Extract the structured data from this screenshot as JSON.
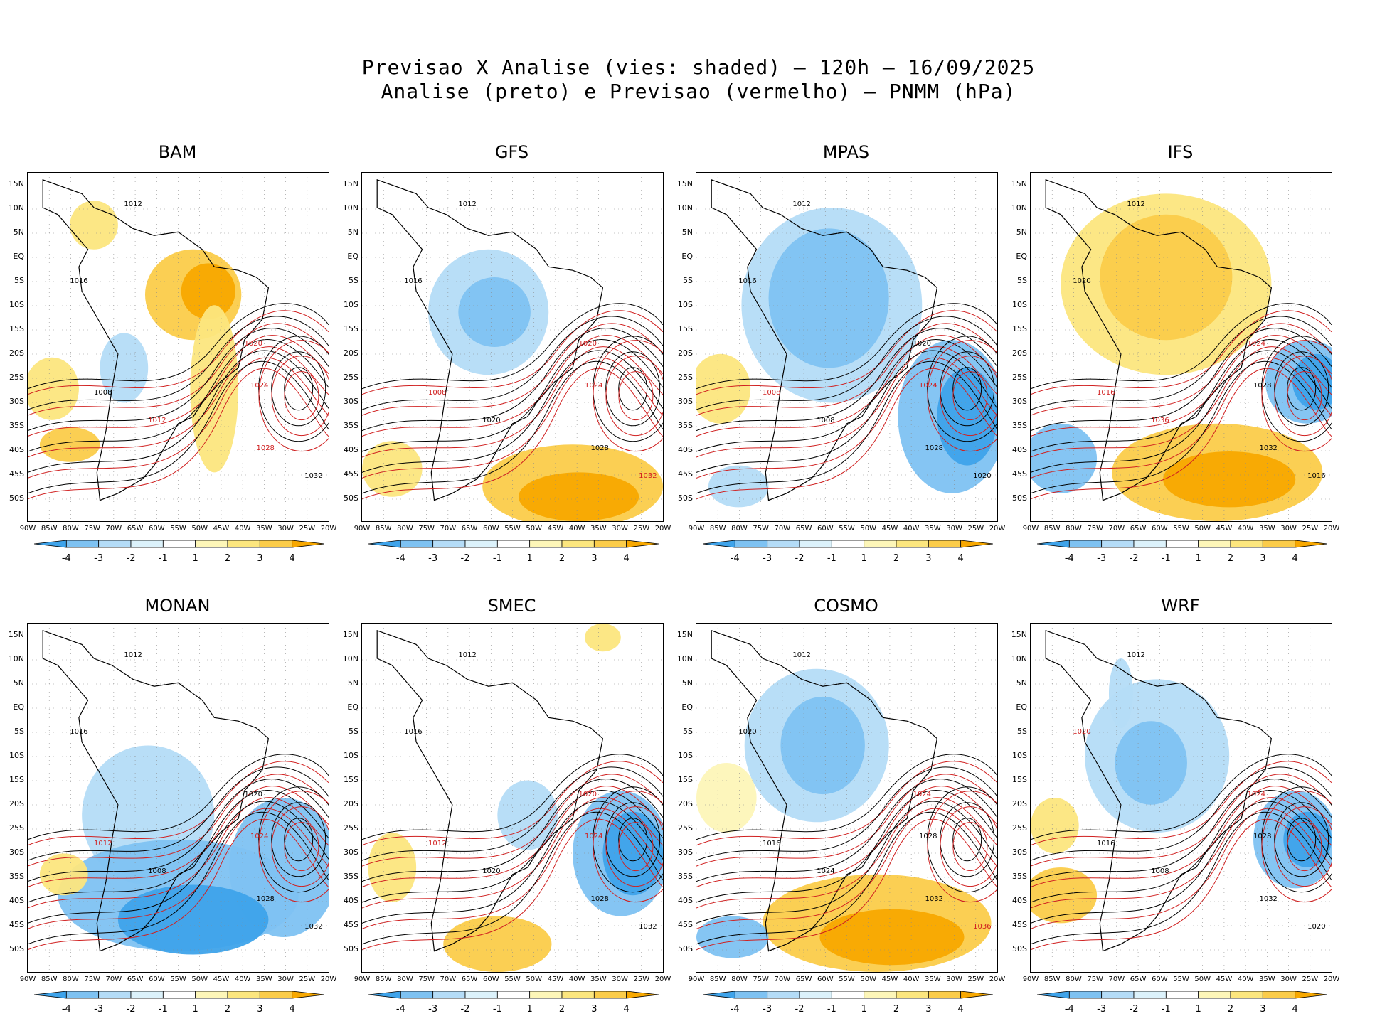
{
  "title_line1": "Previsao X Analise (vies: shaded) – 120h – 16/09/2025",
  "title_line2": "Analise (preto) e Previsao (vermelho) – PNMM (hPa)",
  "lat_labels": [
    "15N",
    "10N",
    "5N",
    "EQ",
    "5S",
    "10S",
    "15S",
    "20S",
    "25S",
    "30S",
    "35S",
    "40S",
    "45S",
    "50S"
  ],
  "lon_labels": [
    "90W",
    "85W",
    "80W",
    "75W",
    "70W",
    "65W",
    "60W",
    "55W",
    "50W",
    "45W",
    "40W",
    "35W",
    "30W",
    "25W",
    "20W"
  ],
  "colorbar_labels": [
    "-4",
    "-3",
    "-2",
    "-1",
    "1",
    "2",
    "3",
    "4"
  ],
  "colors": {
    "neg4": "#3ea3ea",
    "neg3": "#7ec2f2",
    "neg2": "#b4dcf7",
    "neg1": "#dcf2fb",
    "pos1": "#fdf6b8",
    "pos2": "#fce67e",
    "pos3": "#fbcc4a",
    "pos4": "#f8a800",
    "analysis": "#000000",
    "forecast": "#d02020",
    "grid": "#8a8a8a"
  },
  "panels": [
    {
      "name": "BAM",
      "bias": "warm-north",
      "labels": [
        [
          "1012",
          "black"
        ],
        [
          "1008",
          "black"
        ],
        [
          "1016",
          "black"
        ],
        [
          "1020",
          "red"
        ],
        [
          "1024",
          "red"
        ],
        [
          "1028",
          "red"
        ],
        [
          "1032",
          "black"
        ],
        [
          "1012",
          "red"
        ]
      ]
    },
    {
      "name": "GFS",
      "bias": "cold-north",
      "labels": [
        [
          "1012",
          "black"
        ],
        [
          "1008",
          "red"
        ],
        [
          "1016",
          "black"
        ],
        [
          "1020",
          "red"
        ],
        [
          "1024",
          "red"
        ],
        [
          "1028",
          "black"
        ],
        [
          "1032",
          "red"
        ],
        [
          "1020",
          "black"
        ]
      ]
    },
    {
      "name": "MPAS",
      "bias": "cold-all",
      "labels": [
        [
          "1012",
          "black"
        ],
        [
          "1008",
          "red"
        ],
        [
          "1016",
          "black"
        ],
        [
          "1020",
          "black"
        ],
        [
          "1024",
          "red"
        ],
        [
          "1028",
          "black"
        ],
        [
          "1020",
          "black"
        ],
        [
          "1008",
          "black"
        ]
      ]
    },
    {
      "name": "IFS",
      "bias": "warm-all",
      "labels": [
        [
          "1012",
          "black"
        ],
        [
          "1016",
          "red"
        ],
        [
          "1020",
          "black"
        ],
        [
          "1024",
          "red"
        ],
        [
          "1028",
          "black"
        ],
        [
          "1032",
          "black"
        ],
        [
          "1016",
          "black"
        ],
        [
          "1036",
          "red"
        ]
      ]
    },
    {
      "name": "MONAN",
      "bias": "cold-south",
      "labels": [
        [
          "1012",
          "black"
        ],
        [
          "1012",
          "red"
        ],
        [
          "1016",
          "black"
        ],
        [
          "1020",
          "black"
        ],
        [
          "1024",
          "red"
        ],
        [
          "1028",
          "black"
        ],
        [
          "1032",
          "black"
        ],
        [
          "1008",
          "black"
        ]
      ]
    },
    {
      "name": "SMEC",
      "bias": "mixed",
      "labels": [
        [
          "1012",
          "black"
        ],
        [
          "1012",
          "red"
        ],
        [
          "1016",
          "black"
        ],
        [
          "1020",
          "red"
        ],
        [
          "1024",
          "red"
        ],
        [
          "1028",
          "black"
        ],
        [
          "1032",
          "black"
        ],
        [
          "1020",
          "black"
        ]
      ]
    },
    {
      "name": "COSMO",
      "bias": "warm-south",
      "labels": [
        [
          "1012",
          "black"
        ],
        [
          "1016",
          "black"
        ],
        [
          "1020",
          "black"
        ],
        [
          "1024",
          "red"
        ],
        [
          "1028",
          "black"
        ],
        [
          "1032",
          "black"
        ],
        [
          "1036",
          "red"
        ],
        [
          "1024",
          "black"
        ]
      ]
    },
    {
      "name": "WRF",
      "bias": "cold-east",
      "labels": [
        [
          "1012",
          "black"
        ],
        [
          "1016",
          "black"
        ],
        [
          "1020",
          "red"
        ],
        [
          "1024",
          "red"
        ],
        [
          "1028",
          "black"
        ],
        [
          "1032",
          "black"
        ],
        [
          "1020",
          "black"
        ],
        [
          "1008",
          "black"
        ]
      ]
    }
  ]
}
